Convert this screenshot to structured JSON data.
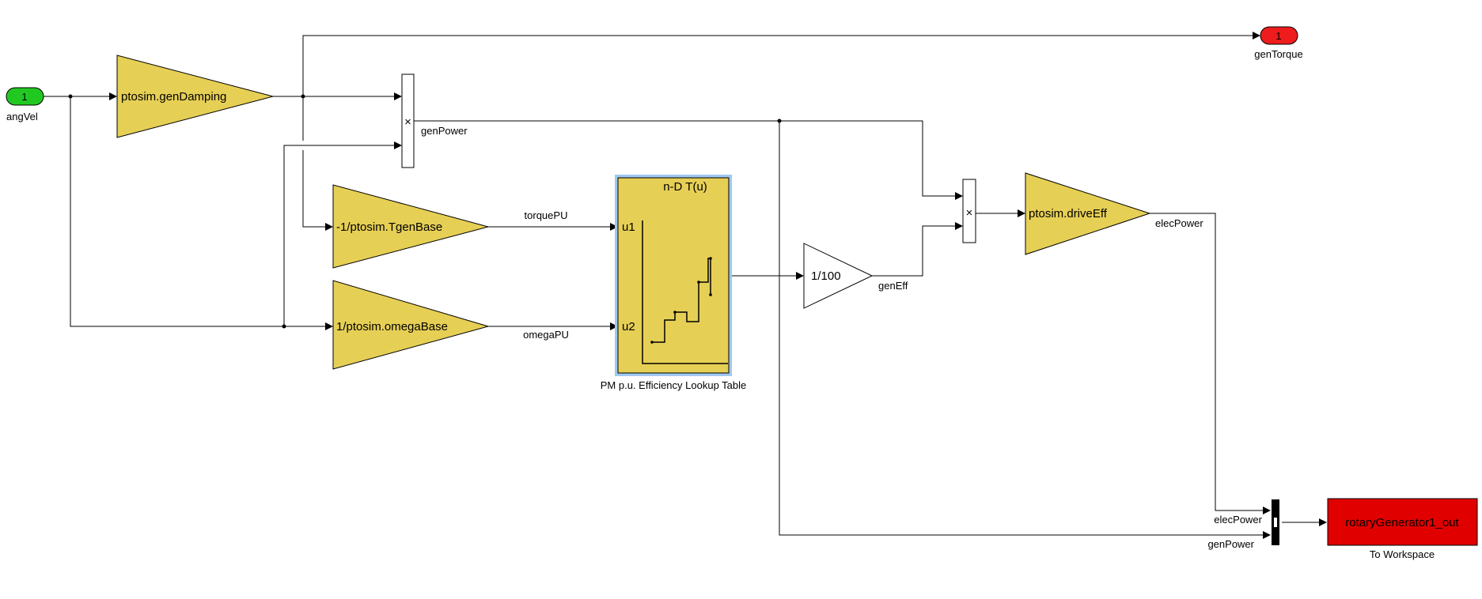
{
  "colors": {
    "gain_fill": "#e6cf55",
    "inport": "#22c822",
    "outport": "#ee1c1c",
    "workspace": "#e10000",
    "selection": "#9fc8f0"
  },
  "inport": {
    "number": "1",
    "name": "angVel"
  },
  "outport": {
    "number": "1",
    "name": "genTorque"
  },
  "gains": {
    "damping": "ptosim.genDamping",
    "tgen": "-1/ptosim.TgenBase",
    "omega": "1/ptosim.omegaBase",
    "pct": "1/100",
    "drive": "ptosim.driveEff"
  },
  "product_symbol": "×",
  "lookup": {
    "title": "n-D T(u)",
    "port1": "u1",
    "port2": "u2",
    "name": "PM p.u. Efficiency Lookup Table"
  },
  "signals": {
    "genPower": "genPower",
    "torquePU": "torquePU",
    "omegaPU": "omegaPU",
    "genEff": "genEff",
    "elecPower": "elecPower",
    "mux_elecPower": "elecPower",
    "mux_genPower": "genPower"
  },
  "workspace": {
    "variable": "rotaryGenerator1_out",
    "name": "To Workspace"
  }
}
